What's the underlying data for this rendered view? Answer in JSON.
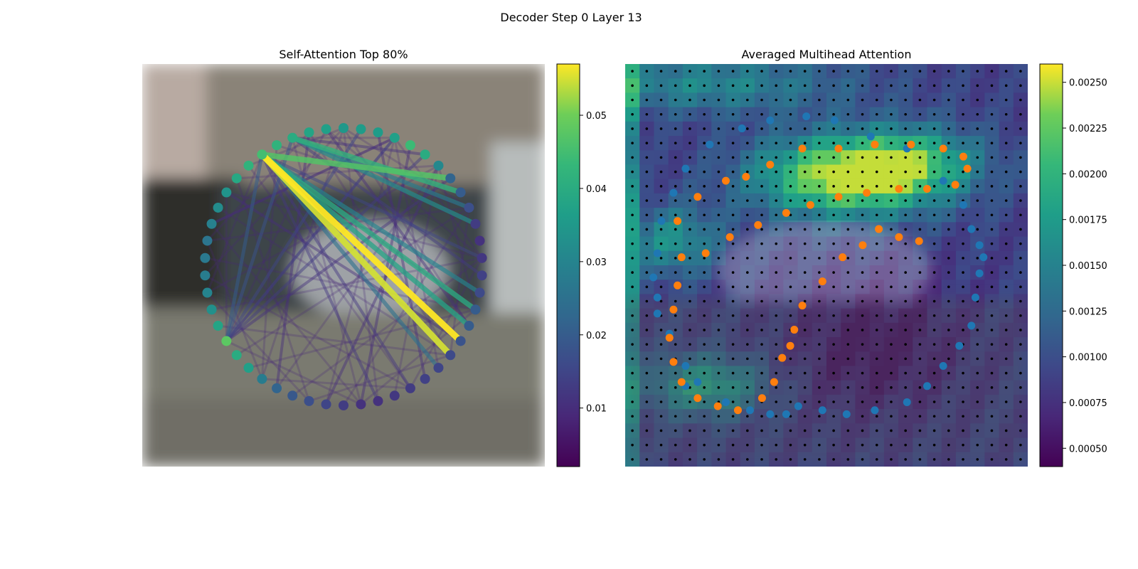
{
  "figure": {
    "title": "Decoder Step 0 Layer 13"
  },
  "chart_data": [
    {
      "type": "network",
      "title": "Self-Attention Top 80%",
      "background": "blurred street photo with a parked car",
      "colormap": "viridis",
      "colorbar": {
        "ticks": [
          "0.01",
          "0.02",
          "0.03",
          "0.04",
          "0.05"
        ],
        "tick_values": [
          0.01,
          0.02,
          0.03,
          0.04,
          0.05
        ],
        "range": [
          0.002,
          0.057
        ]
      },
      "node_count": 50,
      "node_values": [
        0.035,
        0.036,
        0.036,
        0.037,
        0.044,
        0.04,
        0.031,
        0.022,
        0.02,
        0.017,
        0.013,
        0.011,
        0.012,
        0.014,
        0.016,
        0.02,
        0.02,
        0.018,
        0.016,
        0.015,
        0.014,
        0.013,
        0.012,
        0.011,
        0.011,
        0.013,
        0.015,
        0.017,
        0.019,
        0.022,
        0.028,
        0.037,
        0.04,
        0.048,
        0.038,
        0.033,
        0.03,
        0.028,
        0.027,
        0.026,
        0.029,
        0.032,
        0.034,
        0.039,
        0.042,
        0.045,
        0.042,
        0.04,
        0.038,
        0.037
      ],
      "edges": [
        {
          "from": 45,
          "to": 17,
          "value": 0.057
        },
        {
          "from": 45,
          "to": 18,
          "value": 0.055
        },
        {
          "from": 45,
          "to": 7,
          "value": 0.047
        },
        {
          "from": 47,
          "to": 8,
          "value": 0.042
        },
        {
          "from": 45,
          "to": 15,
          "value": 0.04
        },
        {
          "from": 45,
          "to": 16,
          "value": 0.038
        },
        {
          "from": 47,
          "to": 10,
          "value": 0.032
        },
        {
          "from": 45,
          "to": 14,
          "value": 0.03
        },
        {
          "from": 47,
          "to": 9,
          "value": 0.028
        },
        {
          "from": 45,
          "to": 19,
          "value": 0.025
        },
        {
          "from": 33,
          "to": 45,
          "value": 0.02
        },
        {
          "from": 33,
          "to": 47,
          "value": 0.018
        },
        {
          "from": 33,
          "to": 1,
          "value": 0.015
        },
        {
          "from": 45,
          "to": 12,
          "value": 0.015
        },
        {
          "from": 33,
          "to": 3,
          "value": 0.014
        },
        {
          "from": 33,
          "to": 5,
          "value": 0.013
        },
        {
          "from": 47,
          "to": 13,
          "value": 0.013
        },
        {
          "from": 45,
          "to": 21,
          "value": 0.012
        },
        {
          "from": 45,
          "to": 23,
          "value": 0.012
        },
        {
          "from": 47,
          "to": 5,
          "value": 0.011
        },
        {
          "from": 33,
          "to": 7,
          "value": 0.011
        },
        {
          "from": 42,
          "to": 17,
          "value": 0.01
        },
        {
          "from": 2,
          "to": 20,
          "value": 0.01
        },
        {
          "from": 4,
          "to": 24,
          "value": 0.01
        },
        {
          "from": 48,
          "to": 29,
          "value": 0.01
        },
        {
          "from": 40,
          "to": 3,
          "value": 0.01
        },
        {
          "from": 6,
          "to": 26,
          "value": 0.01
        },
        {
          "from": 49,
          "to": 16,
          "value": 0.01
        }
      ]
    },
    {
      "type": "heatmap",
      "title": "Averaged Multihead Attention",
      "background": "blurred street photo with a parked car",
      "colormap": "viridis",
      "grid": [
        28,
        28
      ],
      "colorbar": {
        "ticks": [
          "0.00050",
          "0.00075",
          "0.00100",
          "0.00125",
          "0.00150",
          "0.00175",
          "0.00200",
          "0.00225",
          "0.00250"
        ],
        "tick_values": [
          0.0005,
          0.00075,
          0.001,
          0.00125,
          0.0015,
          0.00175,
          0.002,
          0.00225,
          0.0025
        ],
        "range": [
          0.0004,
          0.0026
        ]
      },
      "series": [
        {
          "color": "#1f77b4",
          "points": [
            [
              0.43,
              0.85
            ],
            [
              0.4,
              0.87
            ],
            [
              0.36,
              0.87
            ],
            [
              0.31,
              0.86
            ],
            [
              0.25,
              0.84
            ],
            [
              0.18,
              0.79
            ],
            [
              0.15,
              0.75
            ],
            [
              0.11,
              0.67
            ],
            [
              0.08,
              0.62
            ],
            [
              0.08,
              0.58
            ],
            [
              0.07,
              0.53
            ],
            [
              0.08,
              0.47
            ],
            [
              0.09,
              0.39
            ],
            [
              0.12,
              0.32
            ],
            [
              0.15,
              0.26
            ],
            [
              0.21,
              0.2
            ],
            [
              0.29,
              0.16
            ],
            [
              0.36,
              0.14
            ],
            [
              0.45,
              0.13
            ],
            [
              0.52,
              0.14
            ],
            [
              0.61,
              0.18
            ],
            [
              0.7,
              0.21
            ],
            [
              0.79,
              0.29
            ],
            [
              0.84,
              0.35
            ],
            [
              0.86,
              0.41
            ],
            [
              0.88,
              0.45
            ],
            [
              0.89,
              0.48
            ],
            [
              0.88,
              0.52
            ],
            [
              0.87,
              0.58
            ],
            [
              0.86,
              0.65
            ],
            [
              0.83,
              0.7
            ],
            [
              0.79,
              0.75
            ],
            [
              0.75,
              0.8
            ],
            [
              0.7,
              0.84
            ],
            [
              0.62,
              0.86
            ],
            [
              0.55,
              0.87
            ],
            [
              0.49,
              0.86
            ],
            [
              0.15,
              0.8
            ]
          ]
        },
        {
          "color": "#ff7f0e",
          "points": [
            [
              0.13,
              0.39
            ],
            [
              0.18,
              0.33
            ],
            [
              0.25,
              0.29
            ],
            [
              0.3,
              0.28
            ],
            [
              0.36,
              0.25
            ],
            [
              0.44,
              0.21
            ],
            [
              0.53,
              0.21
            ],
            [
              0.62,
              0.2
            ],
            [
              0.71,
              0.2
            ],
            [
              0.79,
              0.21
            ],
            [
              0.84,
              0.23
            ],
            [
              0.85,
              0.26
            ],
            [
              0.82,
              0.3
            ],
            [
              0.75,
              0.31
            ],
            [
              0.68,
              0.31
            ],
            [
              0.6,
              0.32
            ],
            [
              0.53,
              0.33
            ],
            [
              0.46,
              0.35
            ],
            [
              0.4,
              0.37
            ],
            [
              0.33,
              0.4
            ],
            [
              0.26,
              0.43
            ],
            [
              0.2,
              0.47
            ],
            [
              0.14,
              0.48
            ],
            [
              0.13,
              0.55
            ],
            [
              0.12,
              0.61
            ],
            [
              0.11,
              0.68
            ],
            [
              0.12,
              0.74
            ],
            [
              0.14,
              0.79
            ],
            [
              0.18,
              0.83
            ],
            [
              0.23,
              0.85
            ],
            [
              0.28,
              0.86
            ],
            [
              0.34,
              0.83
            ],
            [
              0.37,
              0.79
            ],
            [
              0.39,
              0.73
            ],
            [
              0.41,
              0.7
            ],
            [
              0.42,
              0.66
            ],
            [
              0.44,
              0.6
            ],
            [
              0.49,
              0.54
            ],
            [
              0.54,
              0.48
            ],
            [
              0.59,
              0.45
            ],
            [
              0.63,
              0.41
            ],
            [
              0.68,
              0.43
            ],
            [
              0.73,
              0.44
            ]
          ]
        }
      ]
    }
  ]
}
